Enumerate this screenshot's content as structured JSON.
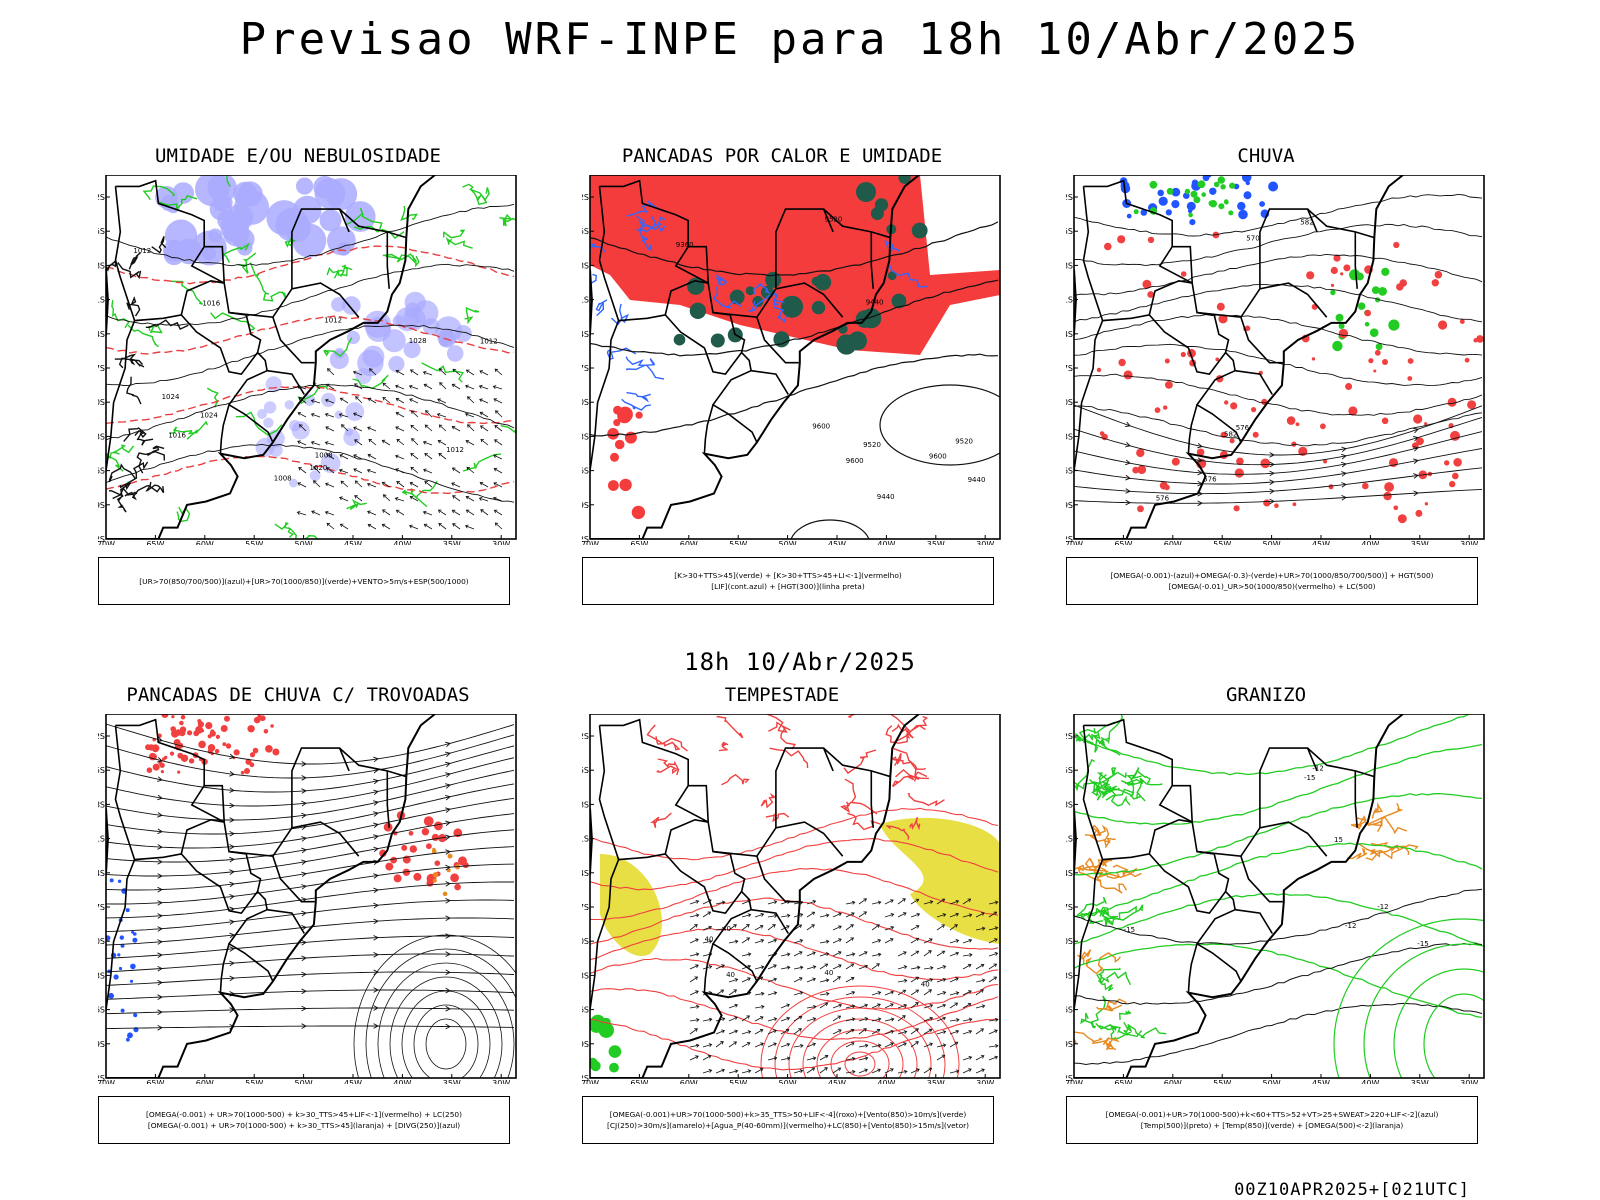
{
  "main_title": "Previsao WRF-INPE  para 18h 10/Abr/2025",
  "middle_title": "18h 10/Abr/2025",
  "footer": "00Z10APR2025+[021UTC]",
  "axes": {
    "lat_labels": [
      "12S",
      "15S",
      "18S",
      "21S",
      "24S",
      "27S",
      "30S",
      "33S",
      "36S",
      "39S",
      "42S"
    ],
    "lon_labels": [
      "70W",
      "65W",
      "60W",
      "55W",
      "50W",
      "45W",
      "40W",
      "35W",
      "30W"
    ]
  },
  "panels": [
    {
      "title": "UMIDADE E/OU NEBULOSIDADE",
      "legend": [
        "[UR>70(850/700/500)](azul)+[UR>70(1000/850)](verde)+VENTO>5m/s+ESP(500/1000)"
      ],
      "colors": {
        "a": "#aaaaff",
        "b": "#22cc22",
        "c": "#e84040"
      },
      "contour_labels": [
        "1008",
        "1008",
        "1012",
        "1012",
        "1012",
        "1016",
        "1020",
        "1024",
        "1028",
        "1016",
        "1024",
        "1012"
      ]
    },
    {
      "title": "PANCADAS POR CALOR E UMIDADE",
      "legend": [
        "[K>30+TTS>45](verde) + [K>30+TTS>45+LI<-1](vermelho)",
        "[LIF](cont.azul) + [HGT(300)](linha preta)"
      ],
      "colors": {
        "a": "#f53c3c",
        "b": "#1f5a4a",
        "c": "#3366ff"
      },
      "contour_labels": [
        "9600",
        "9520",
        "9600",
        "9520",
        "9520",
        "9440",
        "9440",
        "9440",
        "9360",
        "9600"
      ]
    },
    {
      "title": "CHUVA",
      "legend": [
        "[OMEGA(-0.001)-(azul)+OMEGA(-0.3)-(verde)+UR>70(1000/850/700/500)] + HGT(500)",
        "[OMEGA(-0.01)_UR>50(1000/850)(vermelho) + LC(500)"
      ],
      "colors": {
        "a": "#f04040",
        "b": "#22cc22",
        "c": "#2255ff"
      },
      "contour_labels": [
        "582",
        "576",
        "582",
        "576",
        "570",
        "576"
      ]
    },
    {
      "title": "PANCADAS DE CHUVA C/ TROVOADAS",
      "legend": [
        "[OMEGA(-0.001) + UR>70(1000-500) + k>30_TTS>45+LIF<-1](vermelho) + LC(250)",
        "[OMEGA(-0.001) + UR>70(1000-500) + k>30_TTS>45](laranja) + [DIVG(250)](azul)"
      ],
      "colors": {
        "a": "#f04040",
        "b": "#e88a20",
        "c": "#2255ff"
      },
      "contour_labels": []
    },
    {
      "title": "TEMPESTADE",
      "legend": [
        "[OMEGA(-0.001)+UR>70(1000-500)+k>35_TTS>50+LIF<-4](roxo)+[Vento(850)>10m/s](verde)",
        "[CJ(250)>30m/s](amarelo)+[Agua_P(40-60mm)](vermelho)+LC(850)+[Vento(850)>15m/s](vetor)"
      ],
      "colors": {
        "a": "#e6dc30",
        "b": "#f04040",
        "c": "#22cc22"
      },
      "contour_labels": [
        "40",
        "40",
        "40",
        "40",
        "40"
      ]
    },
    {
      "title": "GRANIZO",
      "legend": [
        "[OMEGA(-0.001)+UR>70(1000-500)+k<60+TTS>52+VT>25+SWEAT>220+LIF<-2](azul)",
        "[Temp(500)](preto) + [Temp(850)](verde) + [OMEGA(500)<-2](laranja)"
      ],
      "colors": {
        "a": "#22cc22",
        "b": "#e88a20",
        "c": "#000000"
      },
      "contour_labels": [
        "-12",
        "-12",
        "-12",
        "-15",
        "-15",
        "-15",
        "15"
      ]
    }
  ]
}
